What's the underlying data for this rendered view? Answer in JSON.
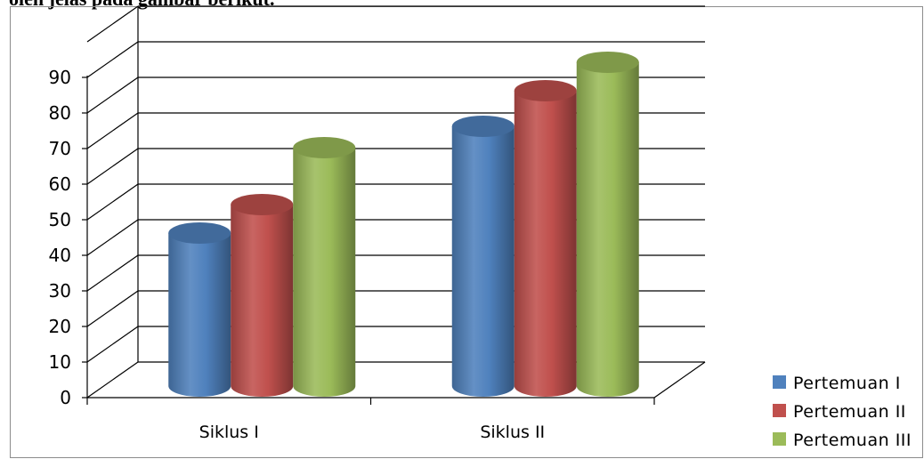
{
  "caption_fragment": "oleh jelas pada gambar berikut.",
  "chart_data": {
    "type": "bar",
    "title": "",
    "xlabel": "",
    "ylabel": "",
    "categories": [
      "Siklus I",
      "Siklus II"
    ],
    "yticks": [
      "0",
      "10",
      "20",
      "30",
      "40",
      "50",
      "60",
      "70",
      "80",
      "90"
    ],
    "ylim": [
      0,
      100
    ],
    "grid": true,
    "legend_position": "bottom-right",
    "bar_shape": "3d-cylinder",
    "series": [
      {
        "name": "Pertemuan I",
        "values": [
          43,
          73
        ],
        "color": "#4f81bd"
      },
      {
        "name": "Pertemuan II",
        "values": [
          51,
          83
        ],
        "color": "#c0504d"
      },
      {
        "name": "Pertemuan III",
        "values": [
          67,
          91
        ],
        "color": "#9bbb59"
      }
    ]
  }
}
